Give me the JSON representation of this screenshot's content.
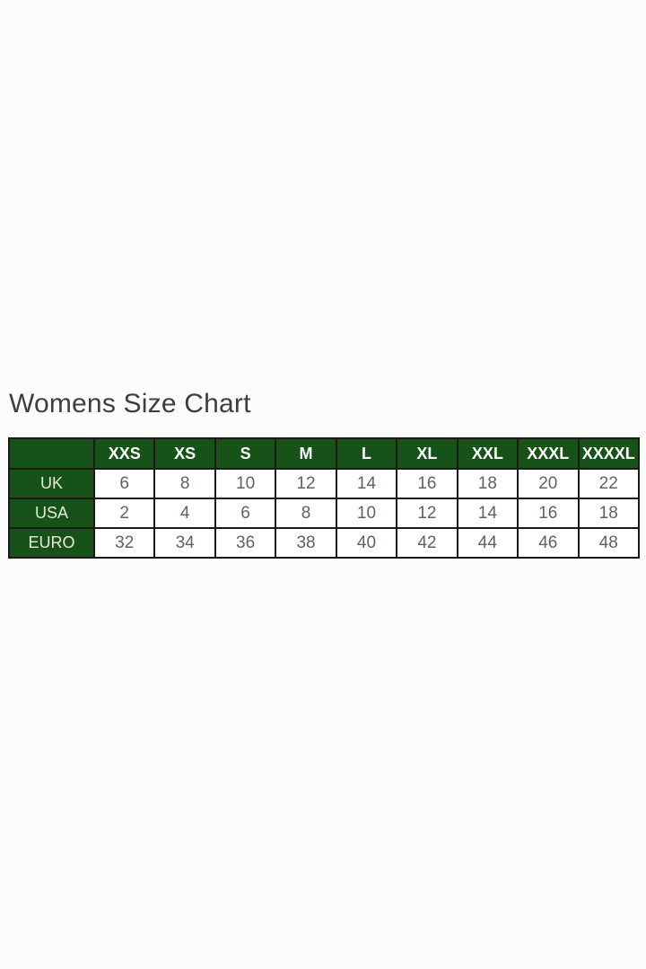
{
  "page": {
    "title": "Womens Size Chart"
  },
  "colors": {
    "header_green": "#175318",
    "table_border": "#1a1a1a",
    "title_text": "#3b3f43",
    "header_text": "#ffffff",
    "row_label_text": "#e8ebd9",
    "value_text": "#5d6268",
    "page_background": "#fcfcfc",
    "cell_background": "#ffffff"
  },
  "chart_data": {
    "type": "table",
    "title": "Womens Size Chart",
    "column_headers": [
      "",
      "XXS",
      "XS",
      "S",
      "M",
      "L",
      "XL",
      "XXL",
      "XXXL",
      "XXXXL"
    ],
    "row_labels": [
      "UK",
      "USA",
      "EURO"
    ],
    "rows": [
      {
        "label": "UK",
        "values": [
          6,
          8,
          10,
          12,
          14,
          16,
          18,
          20,
          22
        ]
      },
      {
        "label": "USA",
        "values": [
          2,
          4,
          6,
          8,
          10,
          12,
          14,
          16,
          18
        ]
      },
      {
        "label": "EURO",
        "values": [
          32,
          34,
          36,
          38,
          40,
          42,
          44,
          46,
          48
        ]
      }
    ],
    "layout": {
      "header_fill": "dark-green",
      "grid": "on",
      "first_column_is_region_label": true
    }
  }
}
